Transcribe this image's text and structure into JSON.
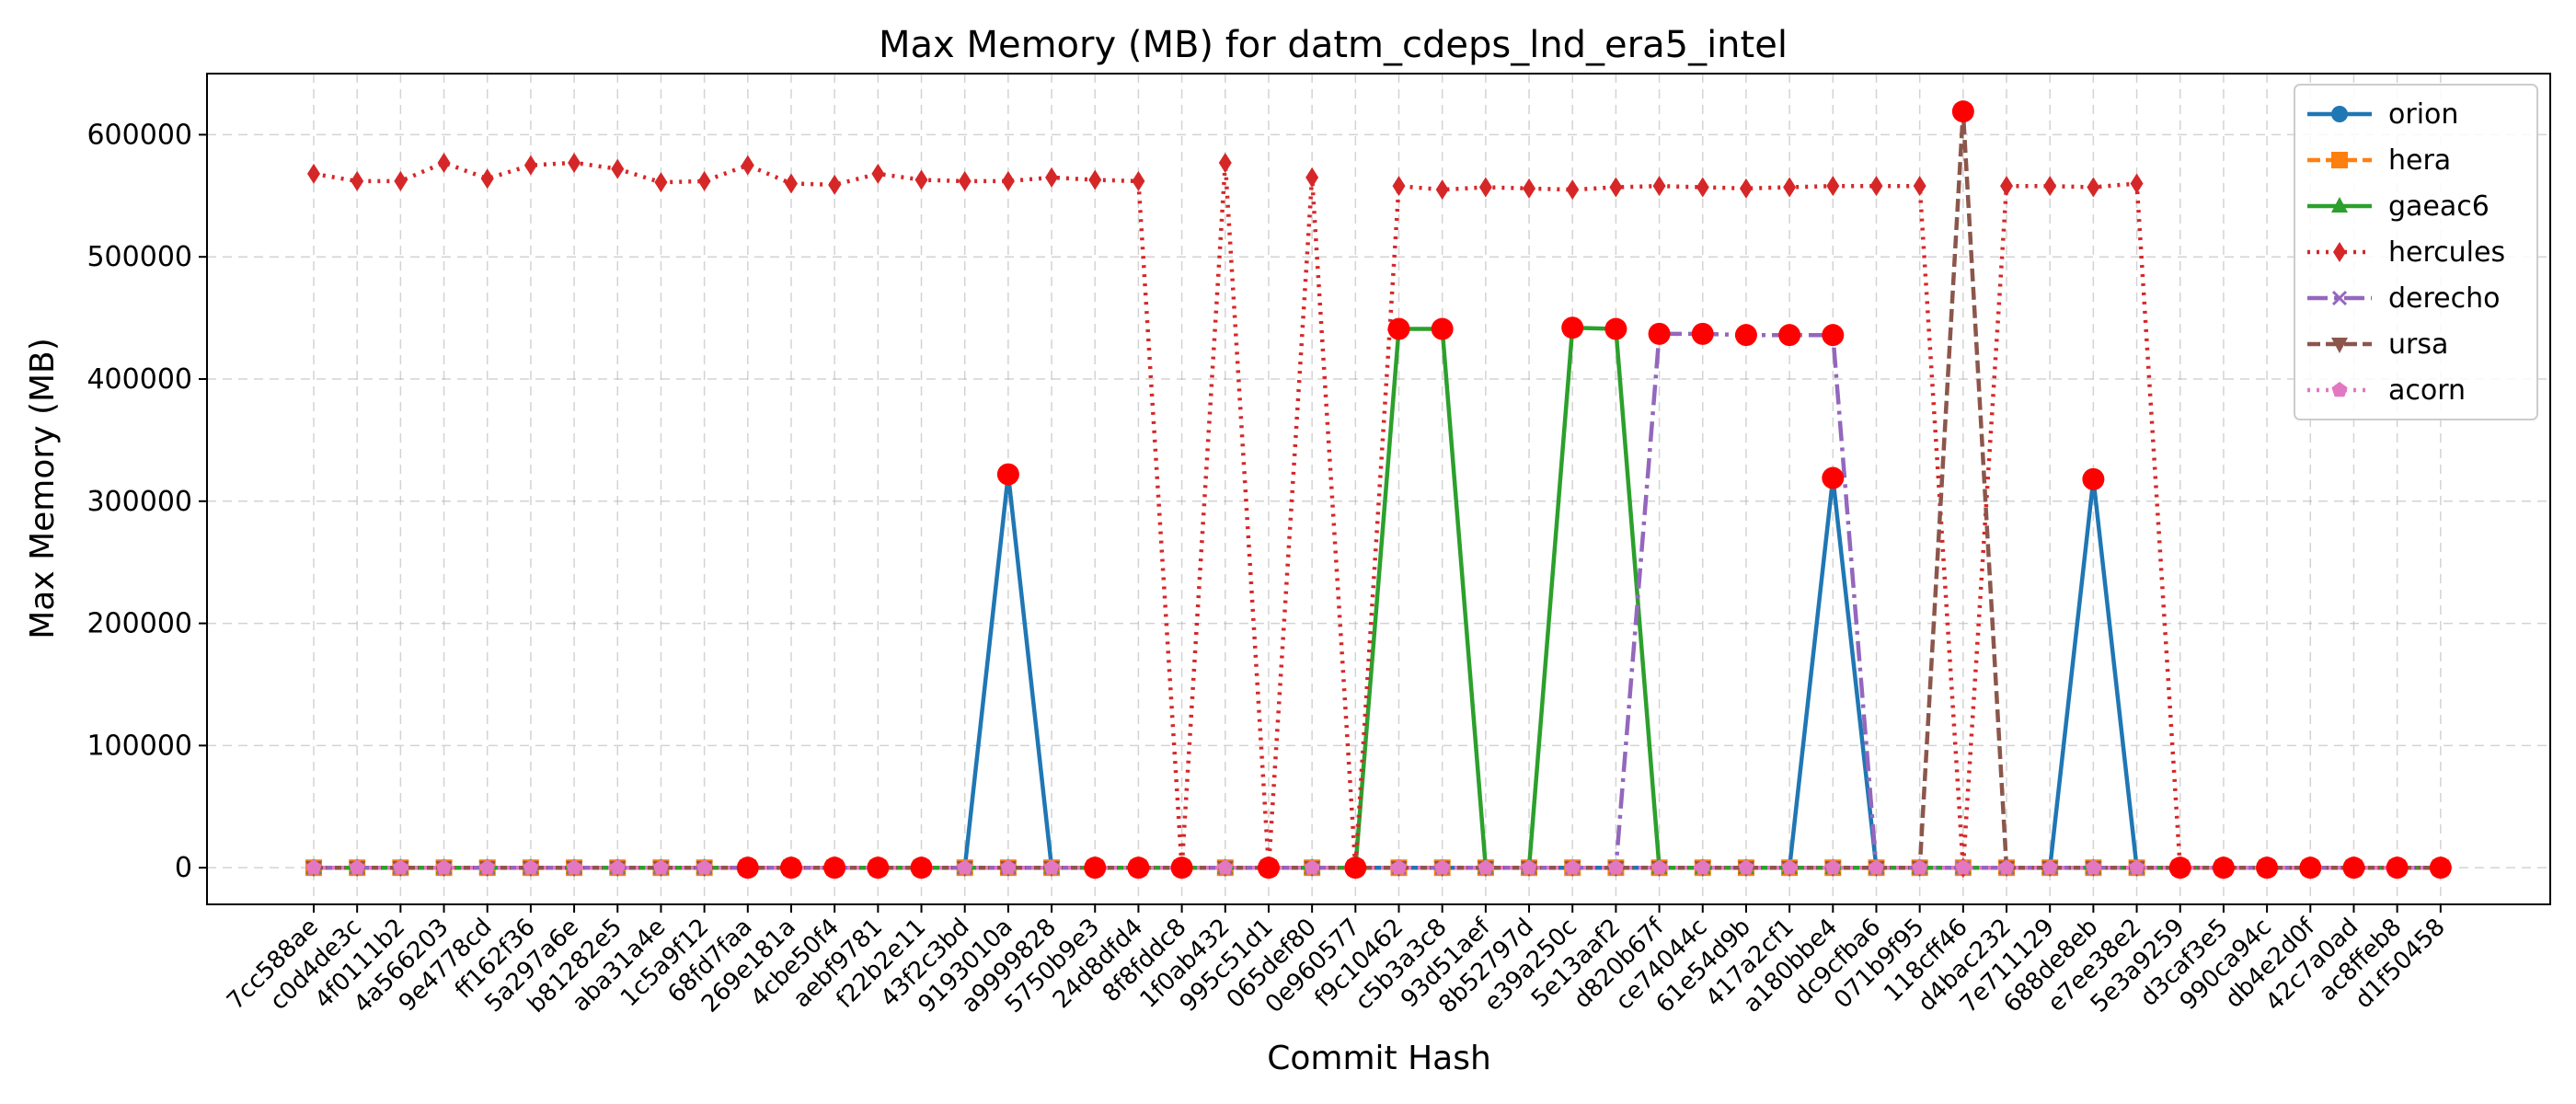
{
  "chart_data": {
    "type": "line",
    "title": "Max Memory (MB) for datm_cdeps_lnd_era5_intel",
    "xlabel": "Commit Hash",
    "ylabel": "Max Memory (MB)",
    "ylim": [
      -30000,
      650000
    ],
    "yticks": [
      0,
      100000,
      200000,
      300000,
      400000,
      500000,
      600000
    ],
    "grid": true,
    "legend_position": "top-right",
    "categories": [
      "7cc588ae",
      "c0d4de3c",
      "4f0111b2",
      "4a566203",
      "9e4778cd",
      "ff162f36",
      "5a297a6e",
      "b81282e5",
      "aba31a4e",
      "1c5a9f12",
      "68fd7faa",
      "269e181a",
      "4cbe50f4",
      "aebf9781",
      "f22b2e11",
      "43f2c3bd",
      "9193010a",
      "a9999828",
      "5750b9e3",
      "24d8dfd4",
      "8f8fddc8",
      "1f0ab432",
      "995c51d1",
      "065def80",
      "0e960577",
      "f9c10462",
      "c5b3a3c8",
      "93d51aef",
      "8b52797d",
      "e39a250c",
      "5e13aaf2",
      "d820b67f",
      "ce74044c",
      "61e54d9b",
      "417a2cf1",
      "a180bbe4",
      "dc9cfba6",
      "071b9f95",
      "118cff46",
      "d4bac232",
      "7e711129",
      "688de8eb",
      "e7ee38e2",
      "5e3a9259",
      "d3caf3e5",
      "990ca94c",
      "db4e2d0f",
      "42c7a0ad",
      "ac8ffeb8",
      "d1f50458"
    ],
    "series": [
      {
        "name": "orion",
        "color": "#1f77b4",
        "dash": "",
        "marker": "circle",
        "values": [
          0,
          0,
          0,
          0,
          0,
          0,
          0,
          0,
          0,
          0,
          0,
          0,
          0,
          0,
          0,
          0,
          322000,
          0,
          0,
          0,
          0,
          0,
          0,
          0,
          0,
          0,
          0,
          0,
          0,
          0,
          0,
          0,
          0,
          0,
          0,
          319000,
          0,
          0,
          0,
          0,
          0,
          318000,
          0,
          0,
          0,
          0,
          0,
          0,
          0,
          0
        ]
      },
      {
        "name": "hera",
        "color": "#ff7f0e",
        "dash": "14 6",
        "marker": "square",
        "values": [
          0,
          0,
          0,
          0,
          0,
          0,
          0,
          0,
          0,
          0,
          0,
          0,
          0,
          0,
          0,
          0,
          0,
          0,
          0,
          0,
          0,
          0,
          0,
          0,
          0,
          0,
          0,
          0,
          0,
          0,
          0,
          0,
          0,
          0,
          0,
          0,
          0,
          0,
          0,
          0,
          0,
          0,
          0,
          0,
          0,
          0,
          0,
          0,
          0,
          0
        ]
      },
      {
        "name": "gaeac6",
        "color": "#2ca02c",
        "dash": "",
        "marker": "triangle",
        "values": [
          0,
          0,
          0,
          0,
          0,
          0,
          0,
          0,
          0,
          0,
          0,
          0,
          0,
          0,
          0,
          0,
          0,
          0,
          0,
          0,
          0,
          0,
          0,
          0,
          0,
          441000,
          441000,
          0,
          0,
          442000,
          441000,
          0,
          0,
          0,
          0,
          0,
          0,
          0,
          0,
          0,
          0,
          0,
          0,
          0,
          0,
          0,
          0,
          0,
          0,
          0
        ]
      },
      {
        "name": "hercules",
        "color": "#d62728",
        "dash": "3 7",
        "marker": "diamond",
        "values": [
          568000,
          562000,
          562000,
          577000,
          564000,
          575000,
          577000,
          572000,
          561000,
          562000,
          575000,
          560000,
          559000,
          568000,
          563000,
          562000,
          562000,
          565000,
          563000,
          562000,
          0,
          577000,
          0,
          565000,
          0,
          558000,
          555000,
          557000,
          556000,
          555000,
          557000,
          558000,
          557000,
          556000,
          557000,
          558000,
          558000,
          558000,
          0,
          558000,
          558000,
          557000,
          560000,
          0,
          0,
          0,
          0,
          0,
          0,
          0
        ]
      },
      {
        "name": "derecho",
        "color": "#9467bd",
        "dash": "22 7 4 7",
        "marker": "x",
        "values": [
          0,
          0,
          0,
          0,
          0,
          0,
          0,
          0,
          0,
          0,
          0,
          0,
          0,
          0,
          0,
          0,
          0,
          0,
          0,
          0,
          0,
          0,
          0,
          0,
          0,
          0,
          0,
          0,
          0,
          0,
          0,
          437000,
          437000,
          436000,
          436000,
          436000,
          0,
          0,
          0,
          0,
          0,
          0,
          0,
          0,
          0,
          0,
          0,
          0,
          0,
          0
        ]
      },
      {
        "name": "ursa",
        "color": "#8c564b",
        "dash": "14 6",
        "marker": "triangle-down",
        "values": [
          0,
          0,
          0,
          0,
          0,
          0,
          0,
          0,
          0,
          0,
          0,
          0,
          0,
          0,
          0,
          0,
          0,
          0,
          0,
          0,
          0,
          0,
          0,
          0,
          0,
          0,
          0,
          0,
          0,
          0,
          0,
          0,
          0,
          0,
          0,
          0,
          0,
          0,
          619000,
          0,
          0,
          0,
          0,
          0,
          0,
          0,
          0,
          0,
          0,
          0
        ]
      },
      {
        "name": "acorn",
        "color": "#e377c2",
        "dash": "3 7",
        "marker": "pentagon",
        "values": [
          0,
          0,
          0,
          0,
          0,
          0,
          0,
          0,
          0,
          0,
          0,
          0,
          0,
          0,
          0,
          0,
          0,
          0,
          0,
          0,
          0,
          0,
          0,
          0,
          0,
          0,
          0,
          0,
          0,
          0,
          0,
          0,
          0,
          0,
          0,
          0,
          0,
          0,
          0,
          0,
          0,
          0,
          0,
          0,
          0,
          0,
          0,
          0,
          0,
          0
        ]
      }
    ],
    "highlight_color": "#ff0000",
    "highlights": [
      {
        "x": "68fd7faa",
        "y": 0
      },
      {
        "x": "269e181a",
        "y": 0
      },
      {
        "x": "4cbe50f4",
        "y": 0
      },
      {
        "x": "aebf9781",
        "y": 0
      },
      {
        "x": "f22b2e11",
        "y": 0
      },
      {
        "x": "9193010a",
        "y": 322000
      },
      {
        "x": "5750b9e3",
        "y": 0
      },
      {
        "x": "24d8dfd4",
        "y": 0
      },
      {
        "x": "8f8fddc8",
        "y": 0
      },
      {
        "x": "995c51d1",
        "y": 0
      },
      {
        "x": "0e960577",
        "y": 0
      },
      {
        "x": "f9c10462",
        "y": 441000
      },
      {
        "x": "c5b3a3c8",
        "y": 441000
      },
      {
        "x": "e39a250c",
        "y": 442000
      },
      {
        "x": "5e13aaf2",
        "y": 441000
      },
      {
        "x": "d820b67f",
        "y": 437000
      },
      {
        "x": "ce74044c",
        "y": 437000
      },
      {
        "x": "61e54d9b",
        "y": 436000
      },
      {
        "x": "417a2cf1",
        "y": 436000
      },
      {
        "x": "a180bbe4",
        "y": 436000
      },
      {
        "x": "a180bbe4",
        "y": 319000
      },
      {
        "x": "118cff46",
        "y": 619000
      },
      {
        "x": "688de8eb",
        "y": 318000
      },
      {
        "x": "5e3a9259",
        "y": 0
      },
      {
        "x": "d3caf3e5",
        "y": 0
      },
      {
        "x": "990ca94c",
        "y": 0
      },
      {
        "x": "db4e2d0f",
        "y": 0
      },
      {
        "x": "42c7a0ad",
        "y": 0
      },
      {
        "x": "ac8ffeb8",
        "y": 0
      },
      {
        "x": "d1f50458",
        "y": 0
      }
    ]
  }
}
